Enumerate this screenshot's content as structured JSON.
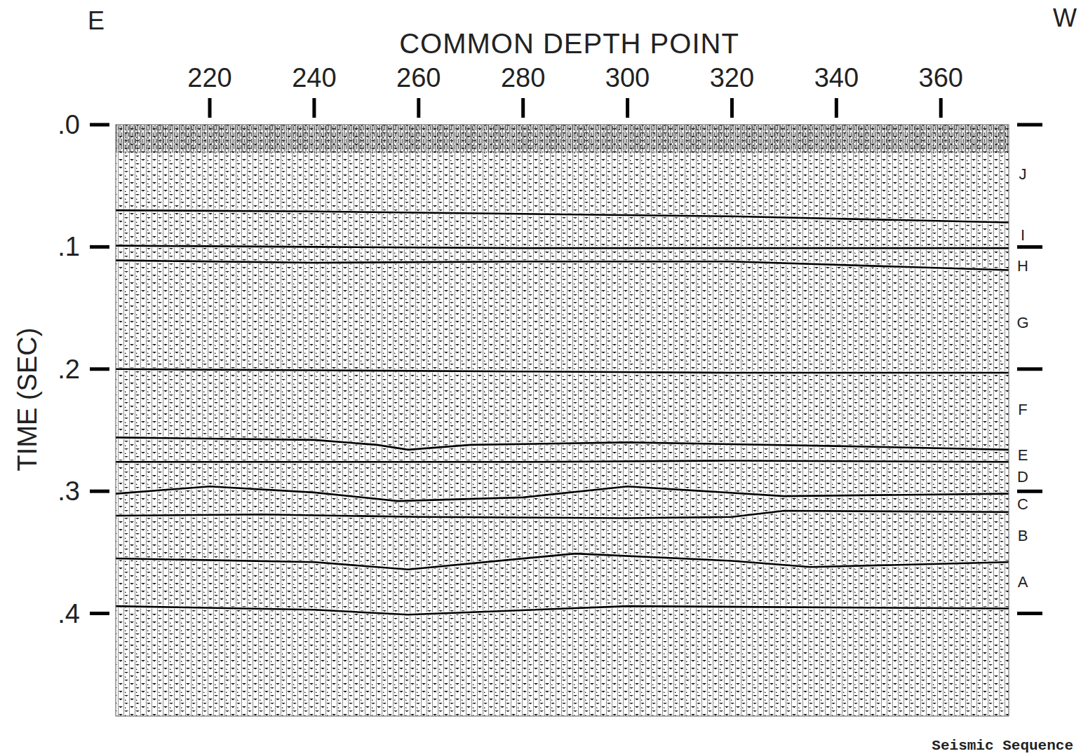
{
  "chart_data": {
    "type": "seismic",
    "x_label": "COMMON DEPTH POINT",
    "y_label": "TIME (SEC)",
    "left_label": "E",
    "right_label": "W",
    "footer": "Seismic Sequence",
    "xlim": [
      202,
      373
    ],
    "xticks": [
      220,
      240,
      260,
      280,
      300,
      320,
      340,
      360
    ],
    "ylim": [
      0,
      0.484
    ],
    "yticks": [
      {
        "value": 0,
        "label": ".0"
      },
      {
        "value": 0.1,
        "label": ".1"
      },
      {
        "value": 0.2,
        "label": ".2"
      },
      {
        "value": 0.3,
        "label": ".3"
      },
      {
        "value": 0.4,
        "label": ".4"
      }
    ],
    "color": "#000000",
    "series": [
      {
        "x": [
          202,
          240,
          280,
          320,
          373
        ],
        "values": [
          0.07,
          0.071,
          0.073,
          0.075,
          0.08
        ]
      },
      {
        "x": [
          202,
          240,
          280,
          320,
          373
        ],
        "values": [
          0.099,
          0.1,
          0.101,
          0.101,
          0.101
        ]
      },
      {
        "x": [
          202,
          240,
          280,
          320,
          373
        ],
        "values": [
          0.111,
          0.113,
          0.112,
          0.112,
          0.119
        ]
      },
      {
        "x": [
          202,
          240,
          280,
          320,
          373
        ],
        "values": [
          0.2,
          0.201,
          0.202,
          0.203,
          0.203
        ]
      },
      {
        "x": [
          202,
          240,
          252,
          258,
          270,
          300,
          340,
          373
        ],
        "values": [
          0.256,
          0.258,
          0.262,
          0.266,
          0.262,
          0.26,
          0.263,
          0.266
        ]
      },
      {
        "x": [
          202,
          240,
          280,
          320,
          373
        ],
        "values": [
          0.276,
          0.276,
          0.276,
          0.275,
          0.276
        ]
      },
      {
        "x": [
          202,
          220,
          240,
          256,
          280,
          300,
          330,
          373
        ],
        "values": [
          0.302,
          0.296,
          0.301,
          0.308,
          0.305,
          0.296,
          0.304,
          0.302
        ]
      },
      {
        "x": [
          202,
          230,
          260,
          300,
          320,
          330,
          373
        ],
        "values": [
          0.32,
          0.319,
          0.321,
          0.322,
          0.321,
          0.316,
          0.317
        ]
      },
      {
        "x": [
          202,
          240,
          258,
          290,
          320,
          335,
          373
        ],
        "values": [
          0.355,
          0.358,
          0.364,
          0.351,
          0.357,
          0.362,
          0.358
        ]
      },
      {
        "x": [
          202,
          240,
          258,
          300,
          373
        ],
        "values": [
          0.394,
          0.397,
          0.401,
          0.394,
          0.396
        ]
      }
    ],
    "sequences": [
      {
        "label": "J",
        "time": 0.04
      },
      {
        "label": "I",
        "time": 0.09
      },
      {
        "label": "H",
        "time": 0.115
      },
      {
        "label": "G",
        "time": 0.162
      },
      {
        "label": "F",
        "time": 0.233
      },
      {
        "label": "E",
        "time": 0.27
      },
      {
        "label": "D",
        "time": 0.288
      },
      {
        "label": "C",
        "time": 0.31
      },
      {
        "label": "B",
        "time": 0.336
      },
      {
        "label": "A",
        "time": 0.374
      }
    ]
  }
}
